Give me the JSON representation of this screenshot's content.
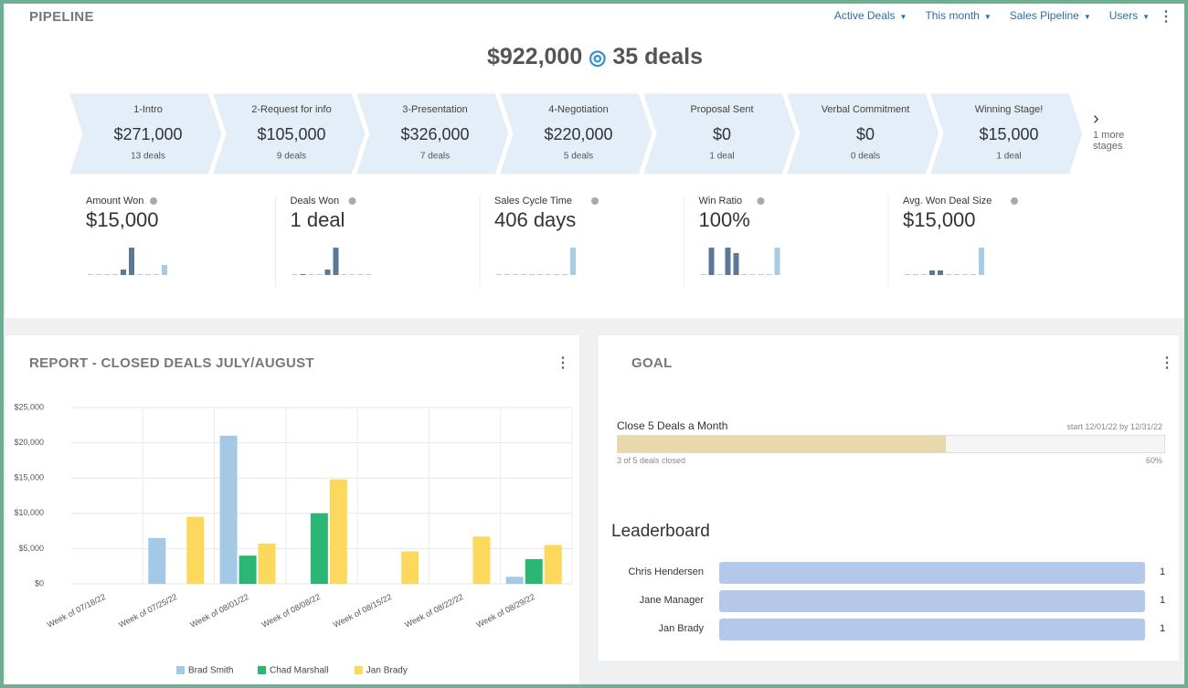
{
  "header": {
    "title": "PIPELINE",
    "filters": [
      "Active Deals",
      "This month",
      "Sales Pipeline",
      "Users"
    ]
  },
  "summary": {
    "amount": "$922,000",
    "deals": "35 deals"
  },
  "stages": [
    {
      "name": "1-Intro",
      "amount": "$271,000",
      "deals": "13 deals"
    },
    {
      "name": "2-Request for info",
      "amount": "$105,000",
      "deals": "9 deals"
    },
    {
      "name": "3-Presentation",
      "amount": "$326,000",
      "deals": "7 deals"
    },
    {
      "name": "4-Negotiation",
      "amount": "$220,000",
      "deals": "5 deals"
    },
    {
      "name": "Proposal Sent",
      "amount": "$0",
      "deals": "1 deal"
    },
    {
      "name": "Verbal Commitment",
      "amount": "$0",
      "deals": "0 deals"
    },
    {
      "name": "Winning Stage!",
      "amount": "$15,000",
      "deals": "1 deal"
    }
  ],
  "more_stages": "1 more stages",
  "metrics": [
    {
      "label": "Amount Won",
      "value": "$15,000",
      "sparkline": [
        0,
        0,
        0,
        0,
        6,
        30,
        0,
        0,
        0,
        11
      ]
    },
    {
      "label": "Deals Won",
      "value": "1 deal",
      "sparkline": [
        0,
        1,
        0,
        0,
        6,
        30,
        0,
        0,
        0,
        0
      ]
    },
    {
      "label": "Sales Cycle Time",
      "value": "406 days",
      "sparkline": [
        0,
        0,
        0,
        0,
        0,
        0,
        0,
        0,
        0,
        30
      ]
    },
    {
      "label": "Win Ratio",
      "value": "100%",
      "sparkline": [
        0,
        30,
        0,
        30,
        24,
        0,
        0,
        0,
        0,
        30
      ]
    },
    {
      "label": "Avg. Won Deal Size",
      "value": "$15,000",
      "sparkline": [
        0,
        0,
        0,
        5,
        5,
        0,
        0,
        0,
        0,
        30
      ]
    }
  ],
  "sparkline_colors": {
    "past": "#5b7895",
    "current": "#a7cde4",
    "empty": "#c8c8c8"
  },
  "chart_data": {
    "type": "bar",
    "title": "REPORT - CLOSED DEALS JULY/AUGUST",
    "categories": [
      "Week of 07/18/22",
      "Week of 07/25/22",
      "Week of 08/01/22",
      "Week of 08/08/22",
      "Week of 08/15/22",
      "Week of 08/22/22",
      "Week of 08/29/22"
    ],
    "series": [
      {
        "name": "Brad Smith",
        "color": "#a3c9e6",
        "values": [
          0,
          6500,
          21000,
          0,
          0,
          0,
          1000
        ]
      },
      {
        "name": "Chad Marshall",
        "color": "#2bb673",
        "values": [
          0,
          0,
          4000,
          10000,
          0,
          0,
          3500
        ]
      },
      {
        "name": "Jan Brady",
        "color": "#fcd95c",
        "values": [
          0,
          9500,
          5700,
          14800,
          4600,
          6700,
          5500
        ]
      }
    ],
    "ylim": [
      0,
      25000
    ],
    "yticks": [
      {
        "value": 0,
        "label": "$0"
      },
      {
        "value": 5000,
        "label": "$5,000"
      },
      {
        "value": 10000,
        "label": "$10,000"
      },
      {
        "value": 15000,
        "label": "$15,000"
      },
      {
        "value": 20000,
        "label": "$20,000"
      },
      {
        "value": 25000,
        "label": "$25,000"
      }
    ],
    "grid": true,
    "legend": "bottom"
  },
  "goal": {
    "title": "GOAL",
    "name": "Close 5 Deals a Month",
    "period": "start 12/01/22 by 12/31/22",
    "status": "3 of 5 deals closed",
    "progress": 60,
    "progress_label": "60%",
    "color": "#e8d9aa"
  },
  "leaderboard": {
    "title": "Leaderboard",
    "rows": [
      {
        "name": "Chris Hendersen",
        "value": 1
      },
      {
        "name": "Jane Manager",
        "value": 1
      },
      {
        "name": "Jan Brady",
        "value": 1
      }
    ],
    "color": "#b4c8ea"
  }
}
